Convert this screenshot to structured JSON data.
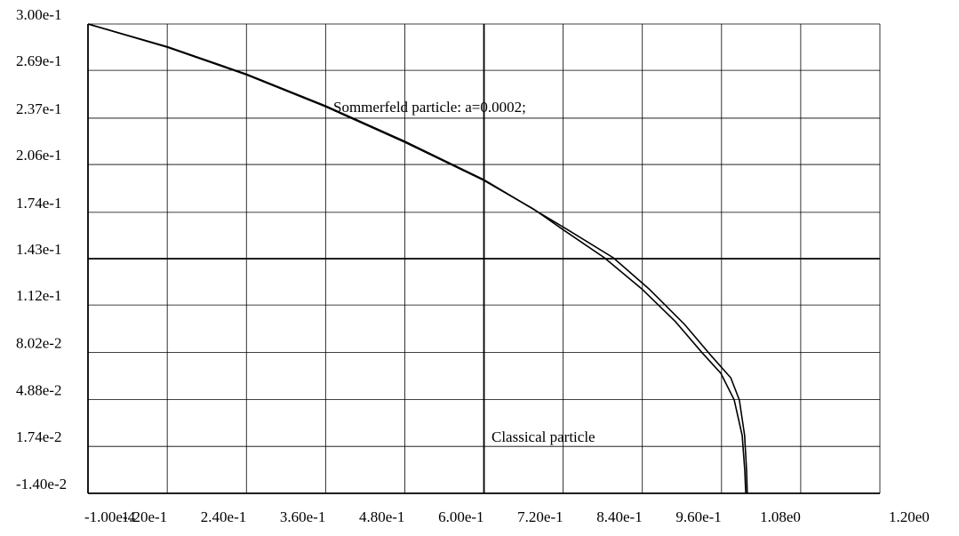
{
  "chart_data": {
    "type": "line",
    "annotations": [
      "Sommerfeld particle: a=0.0002;",
      "Classical particle"
    ],
    "xlim": [
      -0.0001,
      1.2
    ],
    "ylim": [
      -0.014,
      0.3
    ],
    "xticks": [
      {
        "value": -0.0001,
        "label": "-1.00e-4"
      },
      {
        "value": 0.12,
        "label": "1.20e-1"
      },
      {
        "value": 0.24,
        "label": "2.40e-1"
      },
      {
        "value": 0.36,
        "label": "3.60e-1"
      },
      {
        "value": 0.48,
        "label": "4.80e-1"
      },
      {
        "value": 0.6,
        "label": "6.00e-1"
      },
      {
        "value": 0.72,
        "label": "7.20e-1"
      },
      {
        "value": 0.84,
        "label": "8.40e-1"
      },
      {
        "value": 0.96,
        "label": "9.60e-1"
      },
      {
        "value": 1.08,
        "label": "1.08e0"
      },
      {
        "value": 1.2,
        "label": "1.20e0"
      }
    ],
    "yticks": [
      {
        "value": -0.014,
        "label": "-1.40e-2"
      },
      {
        "value": 0.0174,
        "label": "1.74e-2"
      },
      {
        "value": 0.0488,
        "label": "4.88e-2"
      },
      {
        "value": 0.0802,
        "label": "8.02e-2"
      },
      {
        "value": 0.112,
        "label": "1.12e-1"
      },
      {
        "value": 0.143,
        "label": "1.43e-1"
      },
      {
        "value": 0.174,
        "label": "1.74e-1"
      },
      {
        "value": 0.206,
        "label": "2.06e-1"
      },
      {
        "value": 0.237,
        "label": "2.37e-1"
      },
      {
        "value": 0.269,
        "label": "2.69e-1"
      },
      {
        "value": 0.3,
        "label": "3.00e-1"
      }
    ],
    "grid": true,
    "series": [
      {
        "color": "#000000",
        "x": [
          -0.0001,
          0.12,
          0.24,
          0.36,
          0.48,
          0.6,
          0.6748,
          0.7192,
          0.7825,
          0.8391,
          0.8903,
          0.9307,
          0.959,
          0.9792,
          0.9913,
          0.9953,
          0.9967
        ],
        "values": [
          0.3,
          0.2845,
          0.266,
          0.2447,
          0.2209,
          0.1953,
          0.1763,
          0.1626,
          0.1436,
          0.1228,
          0.1008,
          0.08,
          0.0663,
          0.0485,
          0.0247,
          0.0009,
          -0.014
        ]
      },
      {
        "color": "#000000",
        "x": [
          -0.0001,
          0.12,
          0.24,
          0.36,
          0.48,
          0.6,
          0.7192,
          0.796,
          0.85,
          0.904,
          0.944,
          0.974,
          0.987,
          0.995,
          0.998,
          0.999
        ],
        "values": [
          0.3,
          0.2848,
          0.2665,
          0.2452,
          0.2215,
          0.1958,
          0.1644,
          0.1436,
          0.1228,
          0.099,
          0.0782,
          0.0633,
          0.0485,
          0.0247,
          0.0009,
          -0.014
        ]
      }
    ]
  }
}
